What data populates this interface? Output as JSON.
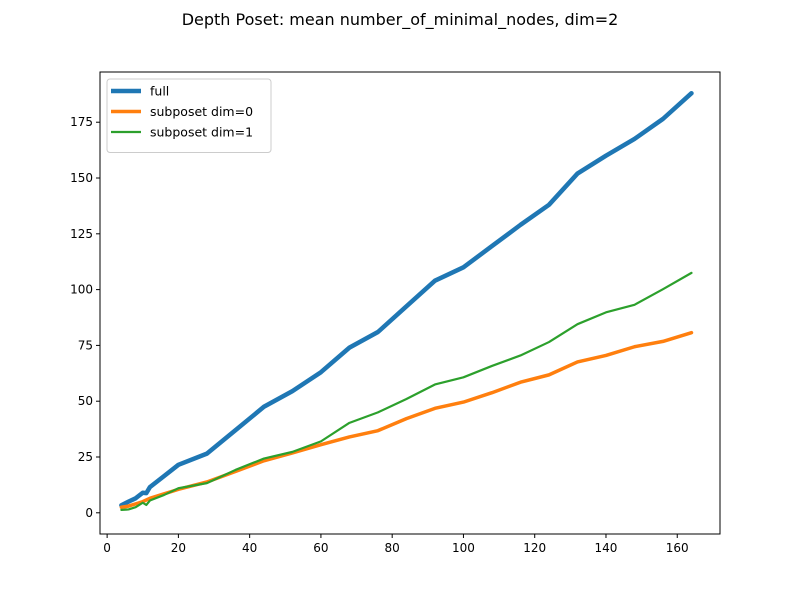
{
  "chart_data": {
    "type": "line",
    "title": "Depth Poset: mean number_of_minimal_nodes, dim=2",
    "xlabel": "",
    "ylabel": "",
    "xlim": [
      -2,
      172
    ],
    "ylim": [
      -9.5,
      197.5
    ],
    "x_ticks": [
      0,
      20,
      40,
      60,
      80,
      100,
      120,
      140,
      160
    ],
    "y_ticks": [
      0,
      25,
      50,
      75,
      100,
      125,
      150,
      175
    ],
    "grid": false,
    "legend_position": "top-left",
    "series": [
      {
        "name": "full",
        "color": "#1f77b4",
        "x": [
          4,
          6,
          8,
          10,
          11,
          12,
          16,
          20,
          28,
          36,
          44,
          52,
          60,
          68,
          76,
          84,
          92,
          100,
          108,
          116,
          124,
          132,
          140,
          148,
          156,
          164
        ],
        "y": [
          3.4,
          5,
          6.5,
          9,
          8.8,
          11.5,
          16.5,
          21.5,
          26.5,
          37,
          47.5,
          54.5,
          63,
          74,
          81,
          92.5,
          104,
          110,
          119.5,
          129,
          138,
          152,
          160,
          167.5,
          176.5,
          188
        ]
      },
      {
        "name": "subposet dim=0",
        "color": "#ff7f0e",
        "x": [
          4,
          6,
          8,
          10,
          12,
          16,
          20,
          28,
          36,
          44,
          52,
          60,
          68,
          76,
          84,
          92,
          100,
          108,
          116,
          124,
          132,
          140,
          148,
          156,
          164
        ],
        "y": [
          2.5,
          3,
          4,
          5,
          6.5,
          8.5,
          10.5,
          13.8,
          18.5,
          23.3,
          26.8,
          30.5,
          34,
          36.8,
          42.2,
          46.8,
          49.6,
          53.8,
          58.5,
          61.8,
          67.6,
          70.5,
          74.4,
          76.8,
          80.7
        ]
      },
      {
        "name": "subposet dim=1",
        "color": "#2ca02c",
        "x": [
          4,
          6,
          8,
          10,
          11,
          12,
          16,
          20,
          28,
          36,
          44,
          52,
          60,
          68,
          76,
          84,
          92,
          100,
          108,
          116,
          124,
          132,
          140,
          148,
          156,
          164
        ],
        "y": [
          1.3,
          1.5,
          2.5,
          4.5,
          3.5,
          5.5,
          8,
          11,
          13.3,
          19.2,
          24.3,
          27.3,
          32,
          40.3,
          45,
          51,
          57.5,
          60.7,
          65.8,
          70.5,
          76.5,
          84.5,
          89.8,
          93.2,
          100.2,
          107.5
        ]
      }
    ]
  }
}
